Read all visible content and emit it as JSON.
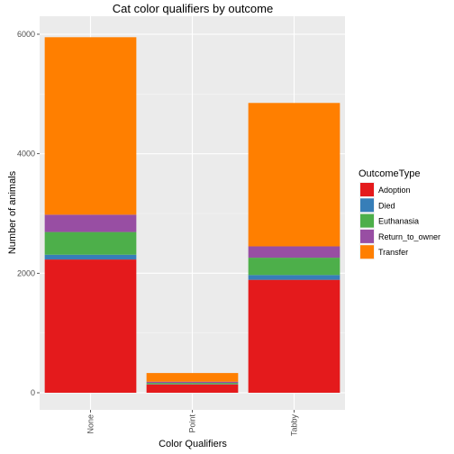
{
  "chart_data": {
    "type": "bar",
    "stacked": true,
    "title": "Cat color qualifiers by outcome",
    "xlabel": "Color Qualifiers",
    "ylabel": "Number of animals",
    "categories": [
      "None",
      "Point",
      "Tabby"
    ],
    "yticks": [
      0,
      2000,
      4000,
      6000
    ],
    "ylim": [
      -300,
      6240
    ],
    "grid": true,
    "legend": {
      "title": "OutcomeType",
      "placement": "right"
    },
    "series": [
      {
        "name": "Adoption",
        "color": "#E41A1C",
        "values": [
          2230,
          140,
          1890
        ]
      },
      {
        "name": "Died",
        "color": "#377EB8",
        "values": [
          80,
          5,
          80
        ]
      },
      {
        "name": "Euthanasia",
        "color": "#4DAF4A",
        "values": [
          380,
          20,
          290
        ]
      },
      {
        "name": "Return_to_owner",
        "color": "#984EA3",
        "values": [
          290,
          20,
          190
        ]
      },
      {
        "name": "Transfer",
        "color": "#FF7F00",
        "values": [
          2970,
          145,
          2400
        ]
      }
    ]
  }
}
